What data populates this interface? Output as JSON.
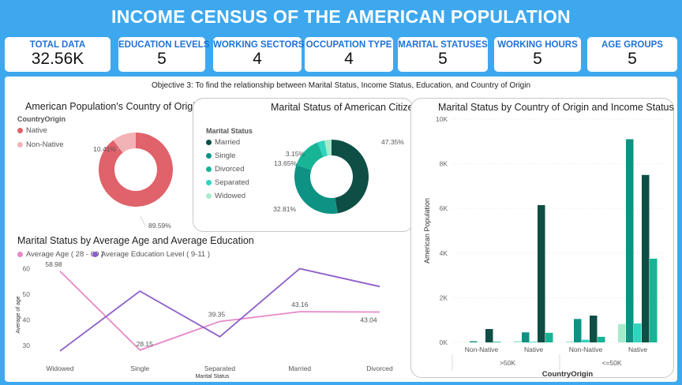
{
  "title": "INCOME CENSUS OF THE AMERICAN POPULATION",
  "kpis": [
    {
      "label": "TOTAL DATA",
      "value": "32.56K"
    },
    {
      "label": "EDUCATION LEVELS",
      "value": "5"
    },
    {
      "label": "WORKING SECTORS",
      "value": "4"
    },
    {
      "label": "OCCUPATION TYPE",
      "value": "4"
    },
    {
      "label": "MARITAL STATUSES",
      "value": "5"
    },
    {
      "label": "WORKING HOURS",
      "value": "5"
    },
    {
      "label": "AGE GROUPS",
      "value": "5"
    }
  ],
  "objective": "Objective 3:  To find the relationship between Marital Status, Income Status, Education, and Country of Origin",
  "colors": {
    "native": "#e0626a",
    "non_native": "#f3b3b6",
    "married": "#0d4f45",
    "single": "#0e9284",
    "divorced": "#17b596",
    "separated": "#30d4bf",
    "widowed": "#a6ebcc",
    "age_line": "#e689c8",
    "edu_line": "#8d5dc8"
  },
  "chart_data": [
    {
      "type": "pie",
      "title": "American Population's Country of Origin",
      "legend_title": "CountryOrigin",
      "labels": [
        "Native",
        "Non-Native"
      ],
      "values": [
        89.59,
        10.41
      ],
      "value_labels": [
        "89.59%",
        "10.41%"
      ]
    },
    {
      "type": "pie",
      "title": "Marital Status of American Citizen",
      "legend_title": "Marital Status",
      "labels": [
        "Married",
        "Single",
        "Divorced",
        "Separated",
        "Widowed"
      ],
      "values": [
        47.35,
        32.81,
        13.65,
        3.15,
        3.04
      ],
      "value_labels": [
        "47.35%",
        "32.81%",
        "13.65%",
        "3.15%",
        ""
      ]
    },
    {
      "type": "bar",
      "title": "Marital Status by Country of Origin and Income Status",
      "xlabel": "CountryOrigin",
      "ylabel": "American Population",
      "ylim": [
        0,
        10000
      ],
      "yticks": [
        0,
        2000,
        4000,
        6000,
        8000,
        10000
      ],
      "ytick_labels": [
        "0K",
        "2K",
        "4K",
        "6K",
        "8K",
        "10K"
      ],
      "categories": [
        "Non-Native",
        "Native",
        "Non-Native",
        "Native"
      ],
      "groups": [
        ">50K",
        "<=50K"
      ],
      "series": [
        {
          "key": "widowed",
          "values": [
            10,
            60,
            50,
            820
          ]
        },
        {
          "key": "single",
          "values": [
            50,
            450,
            1050,
            9100
          ]
        },
        {
          "key": "separated",
          "values": [
            5,
            30,
            120,
            850
          ]
        },
        {
          "key": "married",
          "values": [
            600,
            6150,
            1200,
            7500
          ]
        },
        {
          "key": "divorced",
          "values": [
            30,
            430,
            250,
            3750
          ]
        }
      ]
    },
    {
      "type": "line",
      "title": "Marital Status by Average Age and Average Education",
      "xlabel": "Marital Status",
      "ylabel": "Average of age",
      "ylim": [
        25,
        62
      ],
      "yticks": [
        30,
        40,
        50,
        60
      ],
      "categories": [
        "Widowed",
        "Single",
        "Separated",
        "Married",
        "Divorced"
      ],
      "series": [
        {
          "name": "Average Age ( 28 - 60 )",
          "values": [
            58.98,
            28.15,
            39.35,
            43.16,
            43.04
          ],
          "value_labels": [
            "58.98",
            "28.15",
            "39.35",
            "43.16",
            "43.04"
          ]
        },
        {
          "name": "Average Education Level ( 9-11 )",
          "values": [
            27.8,
            51.2,
            33.4,
            60.0,
            53.0
          ],
          "value_labels": [
            "",
            "",
            "",
            "",
            ""
          ]
        }
      ]
    }
  ]
}
